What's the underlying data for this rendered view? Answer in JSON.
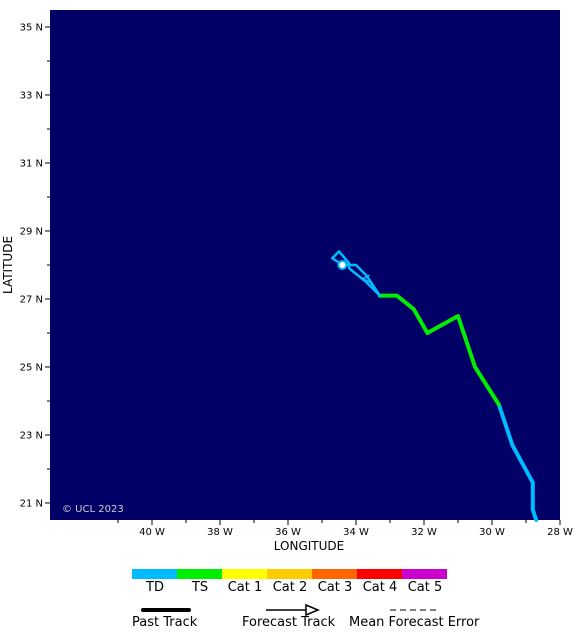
{
  "map": {
    "background": "#000066",
    "lat_range": [
      20.5,
      35.5
    ],
    "lon_range": [
      -43,
      -28
    ],
    "lat_ticks": [
      {
        "value": 35,
        "label": "35 N"
      },
      {
        "value": 33,
        "label": "33 N"
      },
      {
        "value": 31,
        "label": "31 N"
      },
      {
        "value": 29,
        "label": "29 N"
      },
      {
        "value": 27,
        "label": "27 N"
      },
      {
        "value": 25,
        "label": "25 N"
      },
      {
        "value": 23,
        "label": "23 N"
      },
      {
        "value": 21,
        "label": "21 N"
      }
    ],
    "lon_ticks": [
      {
        "value": -40,
        "label": "40 W"
      },
      {
        "value": -38,
        "label": "38 W"
      },
      {
        "value": -36,
        "label": "36 W"
      },
      {
        "value": -34,
        "label": "34 W"
      },
      {
        "value": -32,
        "label": "32 W"
      },
      {
        "value": -30,
        "label": "30 W"
      },
      {
        "value": -28,
        "label": "28 W"
      }
    ],
    "xlabel": "LONGITUDE",
    "ylabel": "LATITUDE",
    "copyright": "© UCL 2023"
  },
  "track": {
    "segments": [
      {
        "category": "TD",
        "color": "#00bbff",
        "points": [
          [
            -28.7,
            20.5
          ],
          [
            -28.8,
            20.8
          ],
          [
            -28.8,
            21.6
          ],
          [
            -29.4,
            22.7
          ],
          [
            -29.8,
            23.9
          ]
        ]
      },
      {
        "category": "TS",
        "color": "#00ee00",
        "points": [
          [
            -29.8,
            23.9
          ],
          [
            -30.5,
            25.0
          ],
          [
            -31.0,
            26.5
          ],
          [
            -31.9,
            26.0
          ],
          [
            -32.3,
            26.7
          ],
          [
            -32.8,
            27.1
          ],
          [
            -33.3,
            27.1
          ]
        ]
      },
      {
        "category": "TD",
        "color": "#00bbff",
        "points": [
          [
            -33.3,
            27.1
          ],
          [
            -33.7,
            27.7
          ],
          [
            -34.0,
            28.0
          ],
          [
            -34.4,
            28.0
          ]
        ]
      },
      {
        "category": "TD",
        "color": "#00bbff",
        "points": [
          [
            -33.3,
            27.1
          ],
          [
            -33.7,
            27.5
          ],
          [
            -34.2,
            27.9
          ],
          [
            -34.2,
            28.05
          ],
          [
            -34.5,
            28.4
          ],
          [
            -34.7,
            28.2
          ],
          [
            -34.4,
            28.0
          ]
        ]
      }
    ],
    "forecast_arrow": {
      "color": "#00bbff",
      "points": [
        [
          -33.5,
          27.45
        ],
        [
          -33.8,
          27.6
        ],
        [
          -33.6,
          27.7
        ]
      ]
    },
    "current_position": {
      "lon": -34.4,
      "lat": 28.0,
      "color": "#00bbff"
    }
  },
  "legend": {
    "categories": [
      {
        "label": "TD",
        "color": "#00bbff"
      },
      {
        "label": "TS",
        "color": "#00ee00"
      },
      {
        "label": "Cat 1",
        "color": "#ffff00"
      },
      {
        "label": "Cat 2",
        "color": "#ffcc00"
      },
      {
        "label": "Cat 3",
        "color": "#ff6600"
      },
      {
        "label": "Cat 4",
        "color": "#ff0000"
      },
      {
        "label": "Cat 5",
        "color": "#cc00cc"
      }
    ],
    "past_track_label": "Past Track",
    "forecast_track_label": "Forecast Track",
    "mean_error_label": "Mean Forecast Error"
  }
}
